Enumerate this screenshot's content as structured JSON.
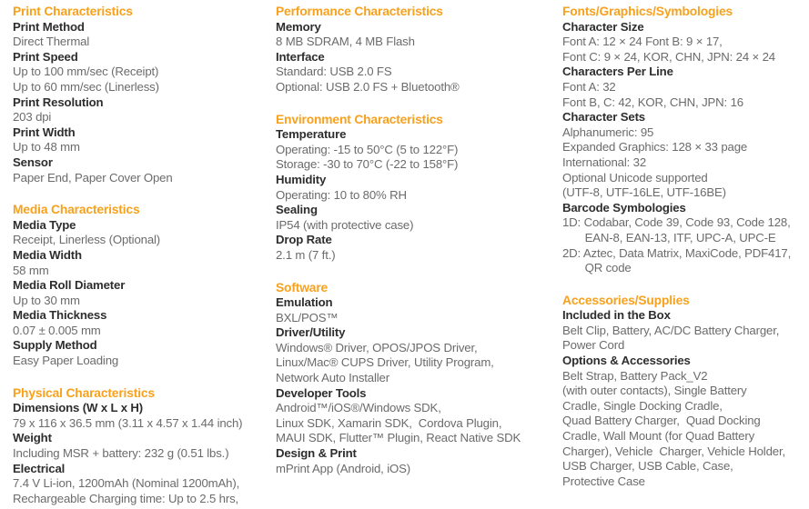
{
  "colors": {
    "heading_orange": "#F7A11D",
    "label_dark": "#2E2E2E",
    "body_gray": "#6B6B6B",
    "background": "#FFFFFF"
  },
  "columns": [
    {
      "sections": [
        {
          "heading": "Print Characteristics",
          "entries": [
            {
              "label": "Print Method",
              "lines": [
                "Direct Thermal"
              ]
            },
            {
              "label": "Print Speed",
              "lines": [
                "Up to 100 mm/sec (Receipt)",
                "Up to 60 mm/sec (Linerless)"
              ]
            },
            {
              "label": "Print Resolution",
              "lines": [
                "203 dpi"
              ]
            },
            {
              "label": "Print Width",
              "lines": [
                "Up to 48 mm"
              ]
            },
            {
              "label": "Sensor",
              "lines": [
                "Paper End, Paper Cover Open"
              ]
            }
          ]
        },
        {
          "heading": "Media Characteristics",
          "entries": [
            {
              "label": "Media Type",
              "lines": [
                "Receipt, Linerless (Optional)"
              ]
            },
            {
              "label": "Media Width",
              "lines": [
                "58 mm"
              ]
            },
            {
              "label": "Media Roll Diameter",
              "lines": [
                "Up to 30 mm"
              ]
            },
            {
              "label": "Media Thickness",
              "lines": [
                "0.07 ± 0.005 mm"
              ]
            },
            {
              "label": "Supply Method",
              "lines": [
                "Easy Paper Loading"
              ]
            }
          ]
        },
        {
          "heading": "Physical Characteristics",
          "entries": [
            {
              "label": "Dimensions (W x L x H)",
              "lines": [
                "79 x 116 x 36.5 mm (3.11 x 4.57 x 1.44 inch)"
              ]
            },
            {
              "label": "Weight",
              "lines": [
                "Including MSR + battery: 232 g (0.51 lbs.)"
              ]
            },
            {
              "label": "Electrical",
              "lines": [
                "7.4 V Li-ion, 1200mAh (Nominal 1200mAh),",
                "Rechargeable Charging time: Up to 2.5 hrs,"
              ]
            }
          ]
        }
      ]
    },
    {
      "sections": [
        {
          "heading": "Performance Characteristics",
          "entries": [
            {
              "label": "Memory",
              "lines": [
                "8 MB SDRAM, 4 MB Flash"
              ]
            },
            {
              "label": "Interface",
              "lines": [
                "Standard: USB 2.0 FS",
                "Optional: USB 2.0 FS + Bluetooth®"
              ]
            }
          ]
        },
        {
          "heading": "Environment Characteristics",
          "entries": [
            {
              "label": "Temperature",
              "lines": [
                "Operating: -15 to 50°C (5 to 122°F)",
                "Storage: -30 to 70°C (-22 to 158°F)"
              ]
            },
            {
              "label": "Humidity",
              "lines": [
                "Operating: 10 to 80% RH"
              ]
            },
            {
              "label": "Sealing",
              "lines": [
                "IP54 (with protective case)"
              ]
            },
            {
              "label": "Drop Rate",
              "lines": [
                "2.1 m (7 ft.)"
              ]
            }
          ]
        },
        {
          "heading": "Software",
          "entries": [
            {
              "label": "Emulation",
              "lines": [
                "BXL/POS™"
              ]
            },
            {
              "label": "Driver/Utility",
              "lines": [
                "Windows® Driver, OPOS/JPOS Driver,",
                "Linux/Mac® CUPS Driver, Utility Program,",
                "Network Auto Installer"
              ]
            },
            {
              "label": "Developer Tools",
              "lines": [
                "Android™/iOS®/Windows SDK,",
                "Linux SDK, Xamarin SDK,  Cordova Plugin,",
                "MAUI SDK, Flutter™ Plugin, React Native SDK"
              ]
            },
            {
              "label": "Design & Print",
              "lines": [
                "mPrint App (Android, iOS)"
              ]
            }
          ]
        }
      ]
    },
    {
      "sections": [
        {
          "heading": "Fonts/Graphics/Symbologies",
          "entries": [
            {
              "label": "Character Size",
              "lines": [
                "Font A: 12 × 24 Font B: 9 × 17,",
                "Font C: 9 × 24, KOR, CHN, JPN: 24 × 24"
              ]
            },
            {
              "label": "Characters Per Line",
              "lines": [
                "Font A: 32",
                "Font B, C: 42, KOR, CHN, JPN: 16"
              ]
            },
            {
              "label": "Character Sets",
              "lines": [
                "Alphanumeric: 95",
                "Expanded Graphics: 128 × 33 page",
                "International: 32",
                "Optional Unicode supported",
                "(UTF-8, UTF-16LE, UTF-16BE)"
              ]
            },
            {
              "label": "Barcode Symbologies",
              "lines": [
                "1D: Codabar, Code 39, Code 93, Code 128,",
                "       EAN-8, EAN-13, ITF, UPC-A, UPC-E",
                "2D: Aztec, Data Matrix, MaxiCode, PDF417,",
                "       QR code"
              ]
            }
          ]
        },
        {
          "heading": "Accessories/Supplies",
          "entries": [
            {
              "label": "Included in the Box",
              "lines": [
                "Belt Clip, Battery, AC/DC Battery Charger,",
                "Power Cord"
              ]
            },
            {
              "label": "Options & Accessories",
              "lines": [
                "Belt Strap, Battery Pack_V2",
                "(with outer contacts), Single Battery",
                "Cradle, Single Docking Cradle,",
                "Quad Battery Charger,  Quad Docking",
                "Cradle, Wall Mount (for Quad Battery",
                "Charger), Vehicle  Charger, Vehicle Holder,",
                "USB Charger, USB Cable, Case,",
                "Protective Case"
              ]
            }
          ]
        }
      ]
    }
  ]
}
